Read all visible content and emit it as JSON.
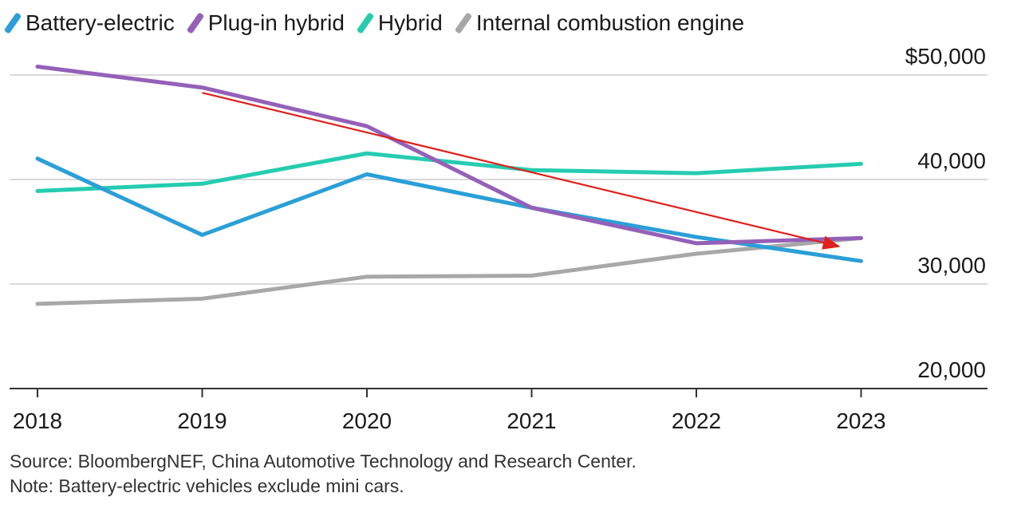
{
  "chart_data": {
    "type": "line",
    "x": [
      "2018",
      "2019",
      "2020",
      "2021",
      "2022",
      "2023"
    ],
    "series": [
      {
        "name": "Battery-electric",
        "color": "#2a9fd8",
        "values": [
          42000,
          34700,
          40500,
          37300,
          34500,
          32200
        ]
      },
      {
        "name": "Plug-in hybrid",
        "color": "#9460b8",
        "values": [
          50800,
          48800,
          45100,
          37300,
          33900,
          34400
        ]
      },
      {
        "name": "Hybrid",
        "color": "#25ccb0",
        "values": [
          38900,
          39600,
          42500,
          40900,
          40600,
          41500
        ]
      },
      {
        "name": "Internal combustion engine",
        "color": "#a8a8a8",
        "values": [
          28100,
          28600,
          30700,
          30800,
          32900,
          34400
        ]
      }
    ],
    "y_ticks": [
      {
        "value": 50000,
        "label": "$50,000"
      },
      {
        "value": 40000,
        "label": "40,000"
      },
      {
        "value": 30000,
        "label": "30,000"
      },
      {
        "value": 20000,
        "label": "20,000"
      }
    ],
    "ylim": [
      20000,
      50000
    ],
    "y_axis_position": "right",
    "grid": true,
    "legend_position": "top-left",
    "annotation": {
      "type": "arrow",
      "color": "#e0201c",
      "from": [
        "2019",
        48300
      ],
      "to": [
        "2023",
        33600
      ]
    }
  },
  "notes": {
    "source": "Source: BloombergNEF, China Automotive Technology and Research Center.",
    "note": "Note: Battery-electric vehicles exclude mini cars."
  }
}
